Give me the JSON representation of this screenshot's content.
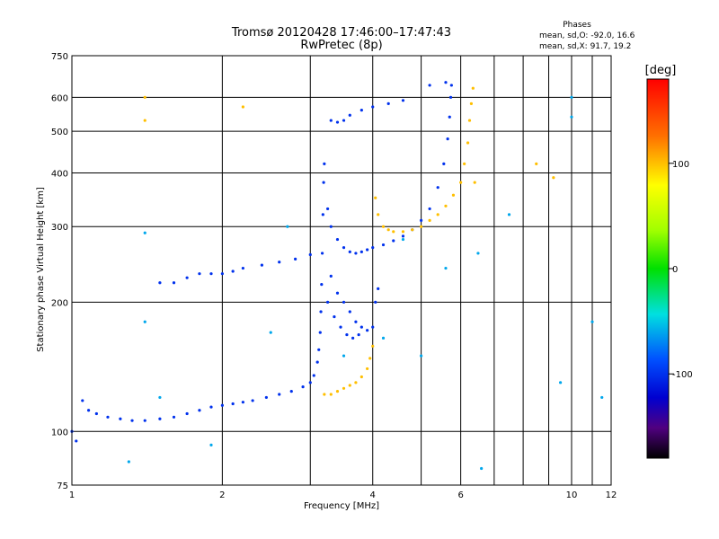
{
  "header": {
    "title_line1": "Tromsø 20120428 17:46:00–17:47:43",
    "title_line2": "RwPretec (8p)"
  },
  "phase_stats": {
    "title": "Phases",
    "line1": "mean, sd,O: -92.0, 16.6",
    "line2": "mean, sd,X:  91.7, 19.2"
  },
  "colorbar": {
    "label": "[deg]",
    "ticks": [
      {
        "value": 100,
        "label": "100"
      },
      {
        "value": 0,
        "label": "0"
      },
      {
        "value": -100,
        "label": "-100"
      }
    ],
    "range": [
      -180,
      180
    ]
  },
  "chart_data": {
    "type": "scatter",
    "xlabel": "Frequency [MHz]",
    "ylabel": "Stationary phase Virtual Height [km]",
    "x_scale": "log",
    "y_scale": "log",
    "xlim": [
      1,
      12
    ],
    "ylim": [
      75,
      750
    ],
    "x_ticks": [
      {
        "value": 1,
        "label": "1"
      },
      {
        "value": 2,
        "label": "2"
      },
      {
        "value": 4,
        "label": "4"
      },
      {
        "value": 6,
        "label": "6"
      },
      {
        "value": 10,
        "label": "10"
      },
      {
        "value": 12,
        "label": "12"
      }
    ],
    "y_ticks": [
      {
        "value": 75,
        "label": "75"
      },
      {
        "value": 100,
        "label": "100"
      },
      {
        "value": 200,
        "label": "200"
      },
      {
        "value": 300,
        "label": "300"
      },
      {
        "value": 400,
        "label": "400"
      },
      {
        "value": 500,
        "label": "500"
      },
      {
        "value": 600,
        "label": "600"
      },
      {
        "value": 750,
        "label": "750"
      }
    ],
    "x_grid": [
      1,
      2,
      3,
      4,
      5,
      6,
      7,
      8,
      9,
      10,
      11,
      12
    ],
    "y_grid": [
      75,
      100,
      200,
      300,
      400,
      500,
      600,
      750
    ],
    "series": [
      {
        "mode": "O",
        "phase": -100,
        "points": [
          [
            1.0,
            100
          ],
          [
            1.02,
            95
          ],
          [
            1.05,
            118
          ],
          [
            1.08,
            112
          ],
          [
            1.12,
            110
          ],
          [
            1.18,
            108
          ],
          [
            1.25,
            107
          ],
          [
            1.32,
            106
          ],
          [
            1.4,
            106
          ],
          [
            1.5,
            107
          ],
          [
            1.6,
            108
          ],
          [
            1.7,
            110
          ],
          [
            1.8,
            112
          ],
          [
            1.9,
            114
          ],
          [
            2.0,
            115
          ],
          [
            2.1,
            116
          ],
          [
            2.2,
            117
          ],
          [
            2.3,
            118
          ],
          [
            2.45,
            120
          ],
          [
            2.6,
            122
          ],
          [
            2.75,
            124
          ],
          [
            2.9,
            127
          ],
          [
            3.0,
            130
          ],
          [
            3.05,
            135
          ],
          [
            3.1,
            145
          ],
          [
            3.12,
            155
          ],
          [
            3.14,
            170
          ],
          [
            3.15,
            190
          ],
          [
            3.16,
            220
          ],
          [
            3.17,
            260
          ],
          [
            3.18,
            320
          ],
          [
            3.19,
            380
          ],
          [
            3.2,
            420
          ],
          [
            3.25,
            330
          ],
          [
            3.3,
            300
          ],
          [
            3.4,
            280
          ],
          [
            3.5,
            268
          ],
          [
            3.6,
            262
          ],
          [
            3.7,
            260
          ],
          [
            3.8,
            262
          ],
          [
            3.9,
            265
          ],
          [
            4.0,
            268
          ],
          [
            4.2,
            272
          ],
          [
            4.4,
            278
          ],
          [
            4.6,
            285
          ],
          [
            4.8,
            295
          ],
          [
            5.0,
            310
          ],
          [
            5.2,
            330
          ],
          [
            5.4,
            370
          ],
          [
            5.55,
            420
          ],
          [
            5.65,
            480
          ],
          [
            5.7,
            540
          ],
          [
            5.73,
            600
          ],
          [
            5.75,
            640
          ],
          [
            1.5,
            222
          ],
          [
            1.6,
            222
          ],
          [
            1.7,
            228
          ],
          [
            1.8,
            233
          ],
          [
            1.9,
            233
          ],
          [
            2.0,
            233
          ],
          [
            2.1,
            236
          ],
          [
            2.2,
            240
          ],
          [
            2.4,
            244
          ],
          [
            2.6,
            248
          ],
          [
            2.8,
            252
          ],
          [
            3.0,
            258
          ],
          [
            3.3,
            530
          ],
          [
            3.4,
            525
          ],
          [
            3.5,
            530
          ],
          [
            3.6,
            545
          ],
          [
            3.8,
            560
          ],
          [
            4.0,
            570
          ],
          [
            4.3,
            580
          ],
          [
            4.6,
            590
          ],
          [
            5.2,
            640
          ],
          [
            5.6,
            650
          ],
          [
            3.3,
            230
          ],
          [
            3.4,
            210
          ],
          [
            3.5,
            200
          ],
          [
            3.6,
            190
          ],
          [
            3.7,
            180
          ],
          [
            3.8,
            175
          ],
          [
            3.9,
            172
          ],
          [
            4.0,
            175
          ],
          [
            4.05,
            200
          ],
          [
            4.1,
            215
          ],
          [
            3.25,
            200
          ],
          [
            3.35,
            185
          ],
          [
            3.45,
            175
          ],
          [
            3.55,
            168
          ],
          [
            3.65,
            165
          ],
          [
            3.75,
            168
          ]
        ]
      },
      {
        "mode": "X",
        "phase": 100,
        "points": [
          [
            3.2,
            122
          ],
          [
            3.3,
            122
          ],
          [
            3.4,
            124
          ],
          [
            3.5,
            126
          ],
          [
            3.6,
            128
          ],
          [
            3.7,
            130
          ],
          [
            3.8,
            134
          ],
          [
            3.9,
            140
          ],
          [
            3.95,
            148
          ],
          [
            4.0,
            158
          ],
          [
            4.05,
            350
          ],
          [
            4.1,
            320
          ],
          [
            4.2,
            300
          ],
          [
            4.3,
            295
          ],
          [
            4.4,
            292
          ],
          [
            4.6,
            292
          ],
          [
            4.8,
            295
          ],
          [
            5.0,
            300
          ],
          [
            5.2,
            310
          ],
          [
            5.4,
            320
          ],
          [
            5.6,
            335
          ],
          [
            5.8,
            355
          ],
          [
            6.0,
            380
          ],
          [
            6.1,
            420
          ],
          [
            6.2,
            470
          ],
          [
            6.25,
            530
          ],
          [
            6.3,
            580
          ],
          [
            6.35,
            630
          ],
          [
            1.4,
            530
          ],
          [
            1.4,
            600
          ],
          [
            2.2,
            570
          ],
          [
            8.5,
            420
          ],
          [
            9.2,
            390
          ],
          [
            6.4,
            380
          ]
        ]
      },
      {
        "mode": "scattered",
        "phase": -60,
        "points": [
          [
            1.4,
            290
          ],
          [
            1.4,
            180
          ],
          [
            1.5,
            120
          ],
          [
            2.5,
            170
          ],
          [
            2.7,
            300
          ],
          [
            3.5,
            150
          ],
          [
            4.2,
            165
          ],
          [
            4.6,
            280
          ],
          [
            5.0,
            150
          ],
          [
            5.6,
            240
          ],
          [
            6.5,
            260
          ],
          [
            7.5,
            320
          ],
          [
            10.0,
            600
          ],
          [
            10.0,
            540
          ],
          [
            11.0,
            180
          ],
          [
            11.5,
            120
          ],
          [
            9.5,
            130
          ],
          [
            6.6,
            82
          ],
          [
            1.3,
            85
          ],
          [
            1.9,
            93
          ]
        ]
      }
    ]
  }
}
